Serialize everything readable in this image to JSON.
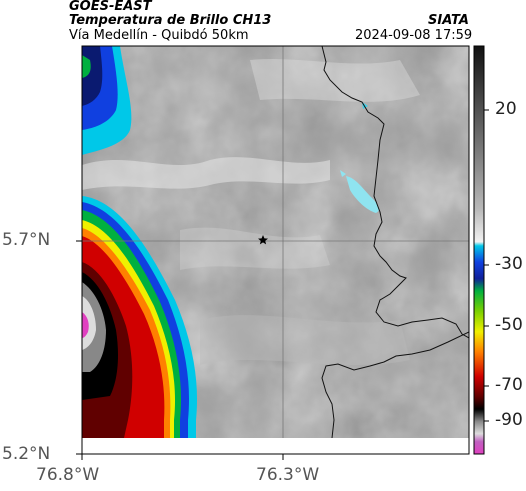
{
  "header": {
    "satellite": "GOES-EAST",
    "product": "Temperatura de Brillo CH13",
    "organization": "SIATA",
    "region": "Vía Medellín - Quibdó 50km",
    "timestamp": "2024-09-08 17:59"
  },
  "map": {
    "lat_labels": [
      "5.7°N",
      "5.2°N"
    ],
    "lon_labels": [
      "76.8°W",
      "76.3°W"
    ],
    "marker": "station-star-icon"
  },
  "colorbar": {
    "labels": [
      "20",
      "-30",
      "-50",
      "-70",
      "-90"
    ],
    "colors": {
      "warm_dark": "#111111",
      "warm_light": "#f2f2f2",
      "cyan": "#00c8e8",
      "blue": "#1040e0",
      "green": "#00b040",
      "yellow": "#f0f000",
      "orange": "#ff8000",
      "red": "#d00000",
      "dark_red": "#600000",
      "black": "#000000",
      "magenta": "#e040c0"
    }
  }
}
